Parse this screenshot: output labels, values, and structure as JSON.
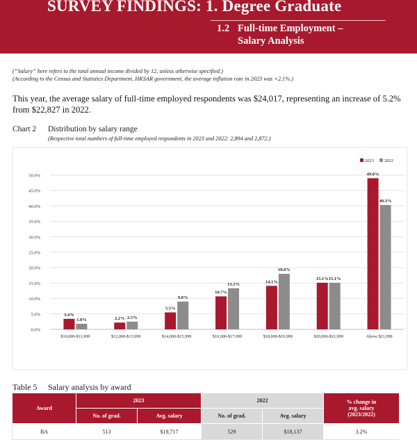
{
  "banner": {
    "title": "SURVEY FINDINGS:  1. Degree Graduate",
    "section_number": "1.2",
    "section_line1": "Full-time Employment –",
    "section_line2": "Salary Analysis",
    "color": "#a8192e"
  },
  "notes": {
    "line1": "(“Salary” here refers to the total annual income divided by 12, unless otherwise specified.)",
    "line2": "(According to the Census and Statistics Department, HKSAR government, the average inflation rate in 2023 was +2.1%.)"
  },
  "paragraph": "This year, the average salary of full-time employed respondents was $24,017, representing an increase of 5.2% from $22,827 in 2022.",
  "chart_heading": {
    "label": "Chart 2",
    "title": "Distribution by salary range",
    "subtitle": "(Respective total numbers of full-time employed respondents in 2023 and 2022: 2,894 and 2,872.)"
  },
  "chart_data": {
    "type": "bar",
    "categories": [
      "$10,000-$11,999",
      "$12,000-$13,999",
      "$14,000-$15,999",
      "$16,000-$17,999",
      "$18,000-$19,999",
      "$20,000-$21,999",
      "Above $21,999"
    ],
    "series": [
      {
        "name": "2023",
        "values": [
          3.4,
          2.2,
          5.5,
          10.7,
          14.1,
          15.1,
          49.0
        ],
        "labels": [
          "3.4%",
          "2.2%",
          "5.5%",
          "10.7%",
          "14.1%",
          "15.1%",
          "49.0%"
        ],
        "color": "#a8192e"
      },
      {
        "name": "2022",
        "values": [
          1.8,
          2.5,
          9.0,
          13.3,
          18.0,
          15.1,
          40.3
        ],
        "labels": [
          "1.8%",
          "2.5%",
          "9.0%",
          "13.3%",
          "18.0%",
          "15.1%",
          "40.3%"
        ],
        "color": "#8c8c8c"
      }
    ],
    "yticks": [
      "0.0%",
      "5.0%",
      "10.0%",
      "15.0%",
      "20.0%",
      "25.0%",
      "30.0%",
      "35.0%",
      "40.0%",
      "45.0%",
      "50.0%"
    ],
    "ylim": [
      0,
      50
    ],
    "grid": true,
    "legend": "top-right"
  },
  "table": {
    "label": "Table 5",
    "title": "Salary analysis by award",
    "award_header": "Award",
    "year_2023": "2023",
    "year_2022": "2022",
    "no_of_grad": "No. of grad.",
    "avg_salary": "Avg. salary",
    "change_line1": "% change in",
    "change_line2": "avg. salary",
    "change_line3": "(2023/2022)",
    "rows": [
      {
        "award": "BA",
        "grad_2023": "513",
        "salary_2023": "$18,717",
        "grad_2022": "529",
        "salary_2022": "$18,137",
        "change": "3.2%"
      }
    ]
  }
}
